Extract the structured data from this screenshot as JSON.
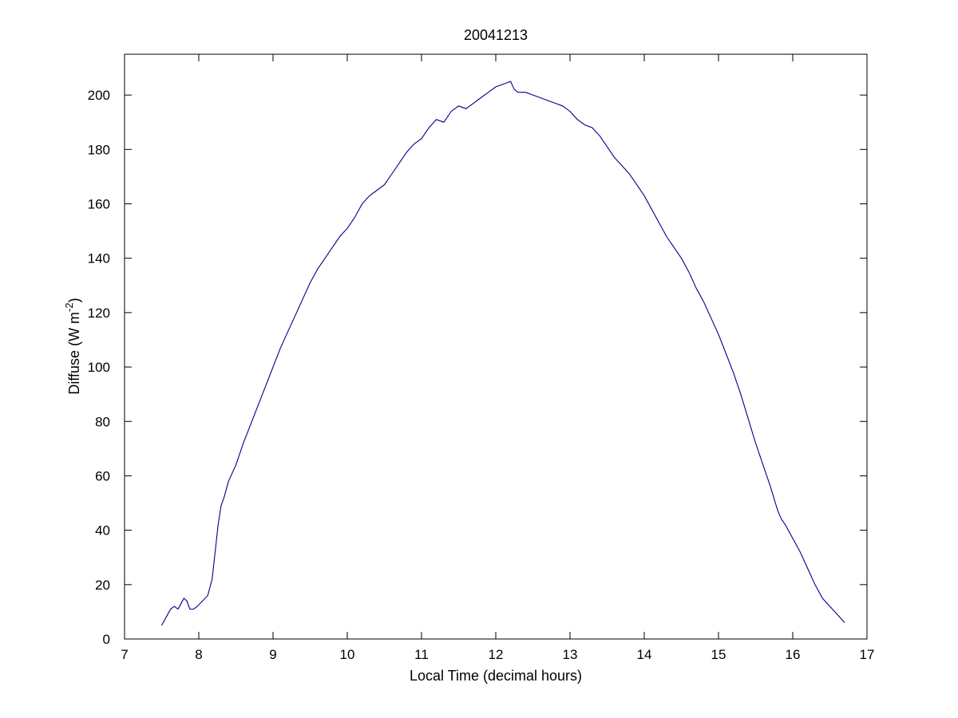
{
  "chart_data": {
    "type": "line",
    "title": "20041213",
    "xlabel": "Local Time (decimal hours)",
    "ylabel": "Diffuse (W m",
    "ylabel_superscript": "-2",
    "ylabel_suffix": ")",
    "xlim": [
      7,
      17
    ],
    "ylim": [
      0,
      215
    ],
    "grid": false,
    "x_ticks": [
      7,
      8,
      9,
      10,
      11,
      12,
      13,
      14,
      15,
      16,
      17
    ],
    "y_ticks": [
      0,
      20,
      40,
      60,
      80,
      100,
      120,
      140,
      160,
      180,
      200
    ],
    "line_color": "#00008b",
    "series": [
      {
        "x": [
          7.5,
          7.56,
          7.62,
          7.67,
          7.72,
          7.76,
          7.8,
          7.84,
          7.88,
          7.93,
          7.98,
          8.05,
          8.12,
          8.18,
          8.22,
          8.26,
          8.3,
          8.34,
          8.4,
          8.5,
          8.6,
          8.7,
          8.8,
          8.9,
          9.0,
          9.1,
          9.2,
          9.3,
          9.4,
          9.5,
          9.6,
          9.7,
          9.8,
          9.9,
          10.0,
          10.1,
          10.2,
          10.3,
          10.4,
          10.5,
          10.6,
          10.7,
          10.8,
          10.9,
          11.0,
          11.1,
          11.2,
          11.3,
          11.4,
          11.5,
          11.6,
          11.7,
          11.8,
          11.9,
          12.0,
          12.1,
          12.2,
          12.25,
          12.3,
          12.4,
          12.5,
          12.6,
          12.7,
          12.8,
          12.9,
          13.0,
          13.1,
          13.2,
          13.3,
          13.4,
          13.5,
          13.6,
          13.7,
          13.8,
          13.9,
          14.0,
          14.1,
          14.2,
          14.3,
          14.4,
          14.5,
          14.6,
          14.7,
          14.8,
          14.9,
          15.0,
          15.1,
          15.2,
          15.3,
          15.4,
          15.5,
          15.6,
          15.7,
          15.8,
          15.85,
          15.9,
          16.0,
          16.1,
          16.2,
          16.3,
          16.4,
          16.5,
          16.6,
          16.7
        ],
        "y": [
          5,
          8,
          11,
          12,
          11,
          13,
          15,
          14,
          11,
          11,
          12,
          14,
          16,
          22,
          32,
          42,
          49,
          52,
          58,
          64,
          72,
          79,
          86,
          93,
          100,
          107,
          113,
          119,
          125,
          131,
          136,
          140,
          144,
          148,
          151,
          155,
          160,
          163,
          165,
          167,
          171,
          175,
          179,
          182,
          184,
          188,
          191,
          190,
          194,
          196,
          195,
          197,
          199,
          201,
          203,
          204,
          205,
          202,
          201,
          201,
          200,
          199,
          198,
          197,
          196,
          194,
          191,
          189,
          188,
          185,
          181,
          177,
          174,
          171,
          167,
          163,
          158,
          153,
          148,
          144,
          140,
          135,
          129,
          124,
          118,
          112,
          105,
          98,
          90,
          81,
          72,
          64,
          56,
          47,
          44,
          42,
          37,
          32,
          26,
          20,
          15,
          12,
          9,
          6
        ]
      }
    ]
  }
}
